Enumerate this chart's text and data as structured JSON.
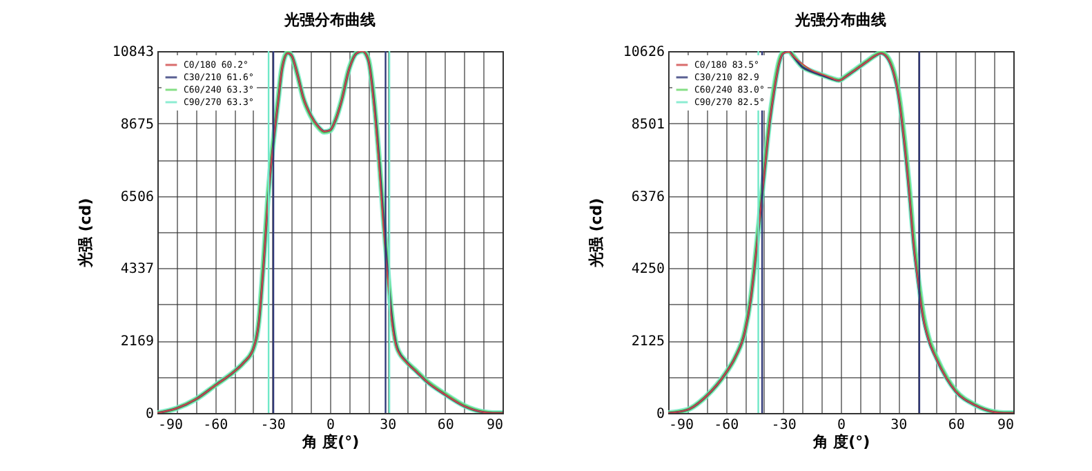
{
  "chart_data": [
    {
      "type": "line",
      "title": "光强分布曲线",
      "xlabel": "角 度(°)",
      "ylabel": "光强 (cd)",
      "grid": true,
      "legend": "top left",
      "line_style": "solid",
      "xlim": [
        -90,
        90
      ],
      "xticks": [
        -90,
        {
          "value": -80,
          "label": null
        },
        {
          "value": -70,
          "label": null
        },
        -60,
        {
          "value": -50,
          "label": null
        },
        {
          "value": -40,
          "label": null
        },
        -30,
        {
          "value": -20,
          "label": null
        },
        {
          "value": -10,
          "label": null
        },
        0,
        {
          "value": 10,
          "label": null
        },
        {
          "value": 20,
          "label": null
        },
        30,
        {
          "value": 40,
          "label": null
        },
        {
          "value": 50,
          "label": null
        },
        60,
        {
          "value": 70,
          "label": null
        },
        {
          "value": 80,
          "label": null
        },
        90
      ],
      "ylim": [
        0,
        10843
      ],
      "yticks": [
        0,
        {
          "value": 1084.5,
          "label": null
        },
        2169,
        {
          "value": 3253,
          "label": null
        },
        4337,
        {
          "value": 5421.5,
          "label": null
        },
        6506,
        {
          "value": 7590.5,
          "label": null
        },
        8675,
        {
          "value": 9759,
          "label": null
        },
        10843
      ],
      "x": [
        -90,
        -80,
        -70,
        -60,
        -50,
        -45,
        -40,
        -37,
        -35,
        -32,
        -30,
        -27,
        -25,
        -22,
        -20,
        -17,
        -14,
        -10,
        -6,
        -3,
        0,
        3,
        6,
        10,
        14,
        17,
        20,
        23,
        26,
        28,
        30,
        32,
        35,
        40,
        45,
        50,
        60,
        70,
        80,
        85,
        90
      ],
      "series": [
        {
          "name": "C0/180 60.2°",
          "color": "#d04848",
          "values": [
            0,
            140,
            410,
            820,
            1240,
            1510,
            1920,
            2750,
            4120,
            6590,
            7820,
            9330,
            10300,
            10780,
            10710,
            10160,
            9470,
            8920,
            8580,
            8440,
            8470,
            8790,
            9340,
            10300,
            10780,
            10843,
            10570,
            9200,
            7140,
            5490,
            4120,
            2880,
            1920,
            1510,
            1240,
            960,
            550,
            206,
            27,
            0,
            0
          ]
        },
        {
          "name": "C30/210 61.6°",
          "color": "#303878",
          "values": [
            0,
            140,
            410,
            820,
            1240,
            1510,
            1920,
            2750,
            4120,
            6590,
            7820,
            9330,
            10300,
            10780,
            10710,
            10160,
            9470,
            8920,
            8580,
            8440,
            8470,
            8790,
            9340,
            10300,
            10780,
            10843,
            10570,
            9300,
            7300,
            5700,
            4300,
            3000,
            1950,
            1520,
            1240,
            960,
            550,
            206,
            27,
            0,
            0
          ]
        },
        {
          "name": "C60/240 63.3°",
          "color": "#68d868",
          "values": [
            0,
            140,
            410,
            820,
            1240,
            1510,
            1920,
            2800,
            4250,
            6700,
            7900,
            9400,
            10350,
            10800,
            10700,
            10150,
            9450,
            8900,
            8560,
            8420,
            8460,
            8800,
            9360,
            10320,
            10790,
            10843,
            10600,
            9350,
            7350,
            5750,
            4350,
            3050,
            1960,
            1530,
            1260,
            980,
            570,
            220,
            30,
            0,
            0
          ]
        },
        {
          "name": "C90/270 63.3°",
          "color": "#70e8c8",
          "values": [
            0,
            140,
            410,
            820,
            1240,
            1510,
            1920,
            2800,
            4250,
            6700,
            7900,
            9400,
            10350,
            10800,
            10700,
            10150,
            9450,
            8900,
            8560,
            8420,
            8460,
            8800,
            9360,
            10320,
            10790,
            10843,
            10600,
            9350,
            7350,
            5750,
            4350,
            3050,
            1960,
            1530,
            1260,
            980,
            570,
            220,
            30,
            0,
            0
          ]
        }
      ],
      "ref_lines": [
        {
          "axis": "x",
          "value": -32,
          "color": "#70e8c8"
        },
        {
          "axis": "x",
          "value": -29.5,
          "color": "#303878"
        },
        {
          "axis": "x",
          "value": 29,
          "color": "#303878"
        },
        {
          "axis": "x",
          "value": 31,
          "color": "#70e8c8"
        }
      ]
    },
    {
      "type": "line",
      "title": "光强分布曲线",
      "xlabel": "角 度(°)",
      "ylabel": "光强 (cd)",
      "grid": true,
      "legend": "top left",
      "line_style": "solid",
      "xlim": [
        -90,
        90
      ],
      "xticks": [
        -90,
        {
          "value": -80,
          "label": null
        },
        {
          "value": -70,
          "label": null
        },
        -60,
        {
          "value": -50,
          "label": null
        },
        {
          "value": -40,
          "label": null
        },
        -30,
        {
          "value": -20,
          "label": null
        },
        {
          "value": -10,
          "label": null
        },
        0,
        {
          "value": 10,
          "label": null
        },
        {
          "value": 20,
          "label": null
        },
        30,
        {
          "value": 40,
          "label": null
        },
        {
          "value": 50,
          "label": null
        },
        60,
        {
          "value": 70,
          "label": null
        },
        {
          "value": 80,
          "label": null
        },
        90
      ],
      "ylim": [
        0,
        10626
      ],
      "yticks": [
        0,
        {
          "value": 1062.5,
          "label": null
        },
        2125,
        {
          "value": 3187.5,
          "label": null
        },
        4250,
        {
          "value": 5313,
          "label": null
        },
        6376,
        {
          "value": 7438.5,
          "label": null
        },
        8501,
        {
          "value": 9563.5,
          "label": null
        },
        10626
      ],
      "x": [
        -90,
        -80,
        -70,
        -60,
        -55,
        -50,
        -47,
        -45,
        -42,
        -40,
        -37,
        -35,
        -32,
        -30,
        -27,
        -25,
        -20,
        -15,
        -10,
        -5,
        -1,
        3,
        8,
        13,
        18,
        21,
        25,
        28,
        30,
        33,
        36,
        38,
        40,
        43,
        46,
        50,
        55,
        60,
        70,
        80,
        85,
        90
      ],
      "series": [
        {
          "name": "C0/180 83.5°",
          "color": "#d04848",
          "values": [
            0,
            94,
            500,
            1170,
            1640,
            2380,
            3310,
            4250,
            5860,
            6940,
            8550,
            9350,
            10290,
            10560,
            10600,
            10490,
            10250,
            10060,
            9950,
            9840,
            9760,
            9890,
            10090,
            10290,
            10490,
            10560,
            10360,
            9890,
            9350,
            8010,
            6270,
            4930,
            3990,
            2780,
            2110,
            1570,
            1030,
            630,
            230,
            27,
            0,
            0
          ]
        },
        {
          "name": "C30/210 82.9",
          "color": "#303878",
          "values": [
            0,
            94,
            500,
            1170,
            1640,
            2380,
            3310,
            4250,
            5860,
            6940,
            8550,
            9350,
            10290,
            10560,
            10626,
            10490,
            10160,
            10020,
            9920,
            9820,
            9760,
            9890,
            10090,
            10290,
            10490,
            10560,
            10360,
            9890,
            9350,
            8010,
            6270,
            4930,
            3990,
            2780,
            2110,
            1570,
            1030,
            630,
            230,
            27,
            0,
            0
          ]
        },
        {
          "name": "C60/240 83.0°",
          "color": "#68d868",
          "values": [
            0,
            94,
            500,
            1170,
            1640,
            2400,
            3350,
            4300,
            5950,
            7050,
            8650,
            9450,
            10350,
            10600,
            10626,
            10500,
            10170,
            10030,
            9930,
            9830,
            9770,
            9900,
            10100,
            10300,
            10500,
            10580,
            10400,
            9950,
            9450,
            8150,
            6450,
            5100,
            4150,
            2900,
            2180,
            1620,
            1060,
            650,
            240,
            30,
            0,
            0
          ]
        },
        {
          "name": "C90/270 82.5°",
          "color": "#70e8c8",
          "values": [
            0,
            94,
            500,
            1170,
            1640,
            2400,
            3350,
            4300,
            5950,
            7050,
            8650,
            9450,
            10350,
            10600,
            10626,
            10500,
            10170,
            10030,
            9930,
            9830,
            9770,
            9900,
            10100,
            10300,
            10500,
            10580,
            10400,
            9950,
            9450,
            8150,
            6450,
            5100,
            4150,
            2900,
            2180,
            1620,
            1060,
            650,
            240,
            30,
            0,
            0
          ]
        }
      ],
      "ref_lines": [
        {
          "axis": "x",
          "value": -43,
          "color": "#70e8c8"
        },
        {
          "axis": "x",
          "value": -41,
          "color": "#303878"
        },
        {
          "axis": "x",
          "value": 41,
          "color": "#303878"
        }
      ]
    }
  ]
}
